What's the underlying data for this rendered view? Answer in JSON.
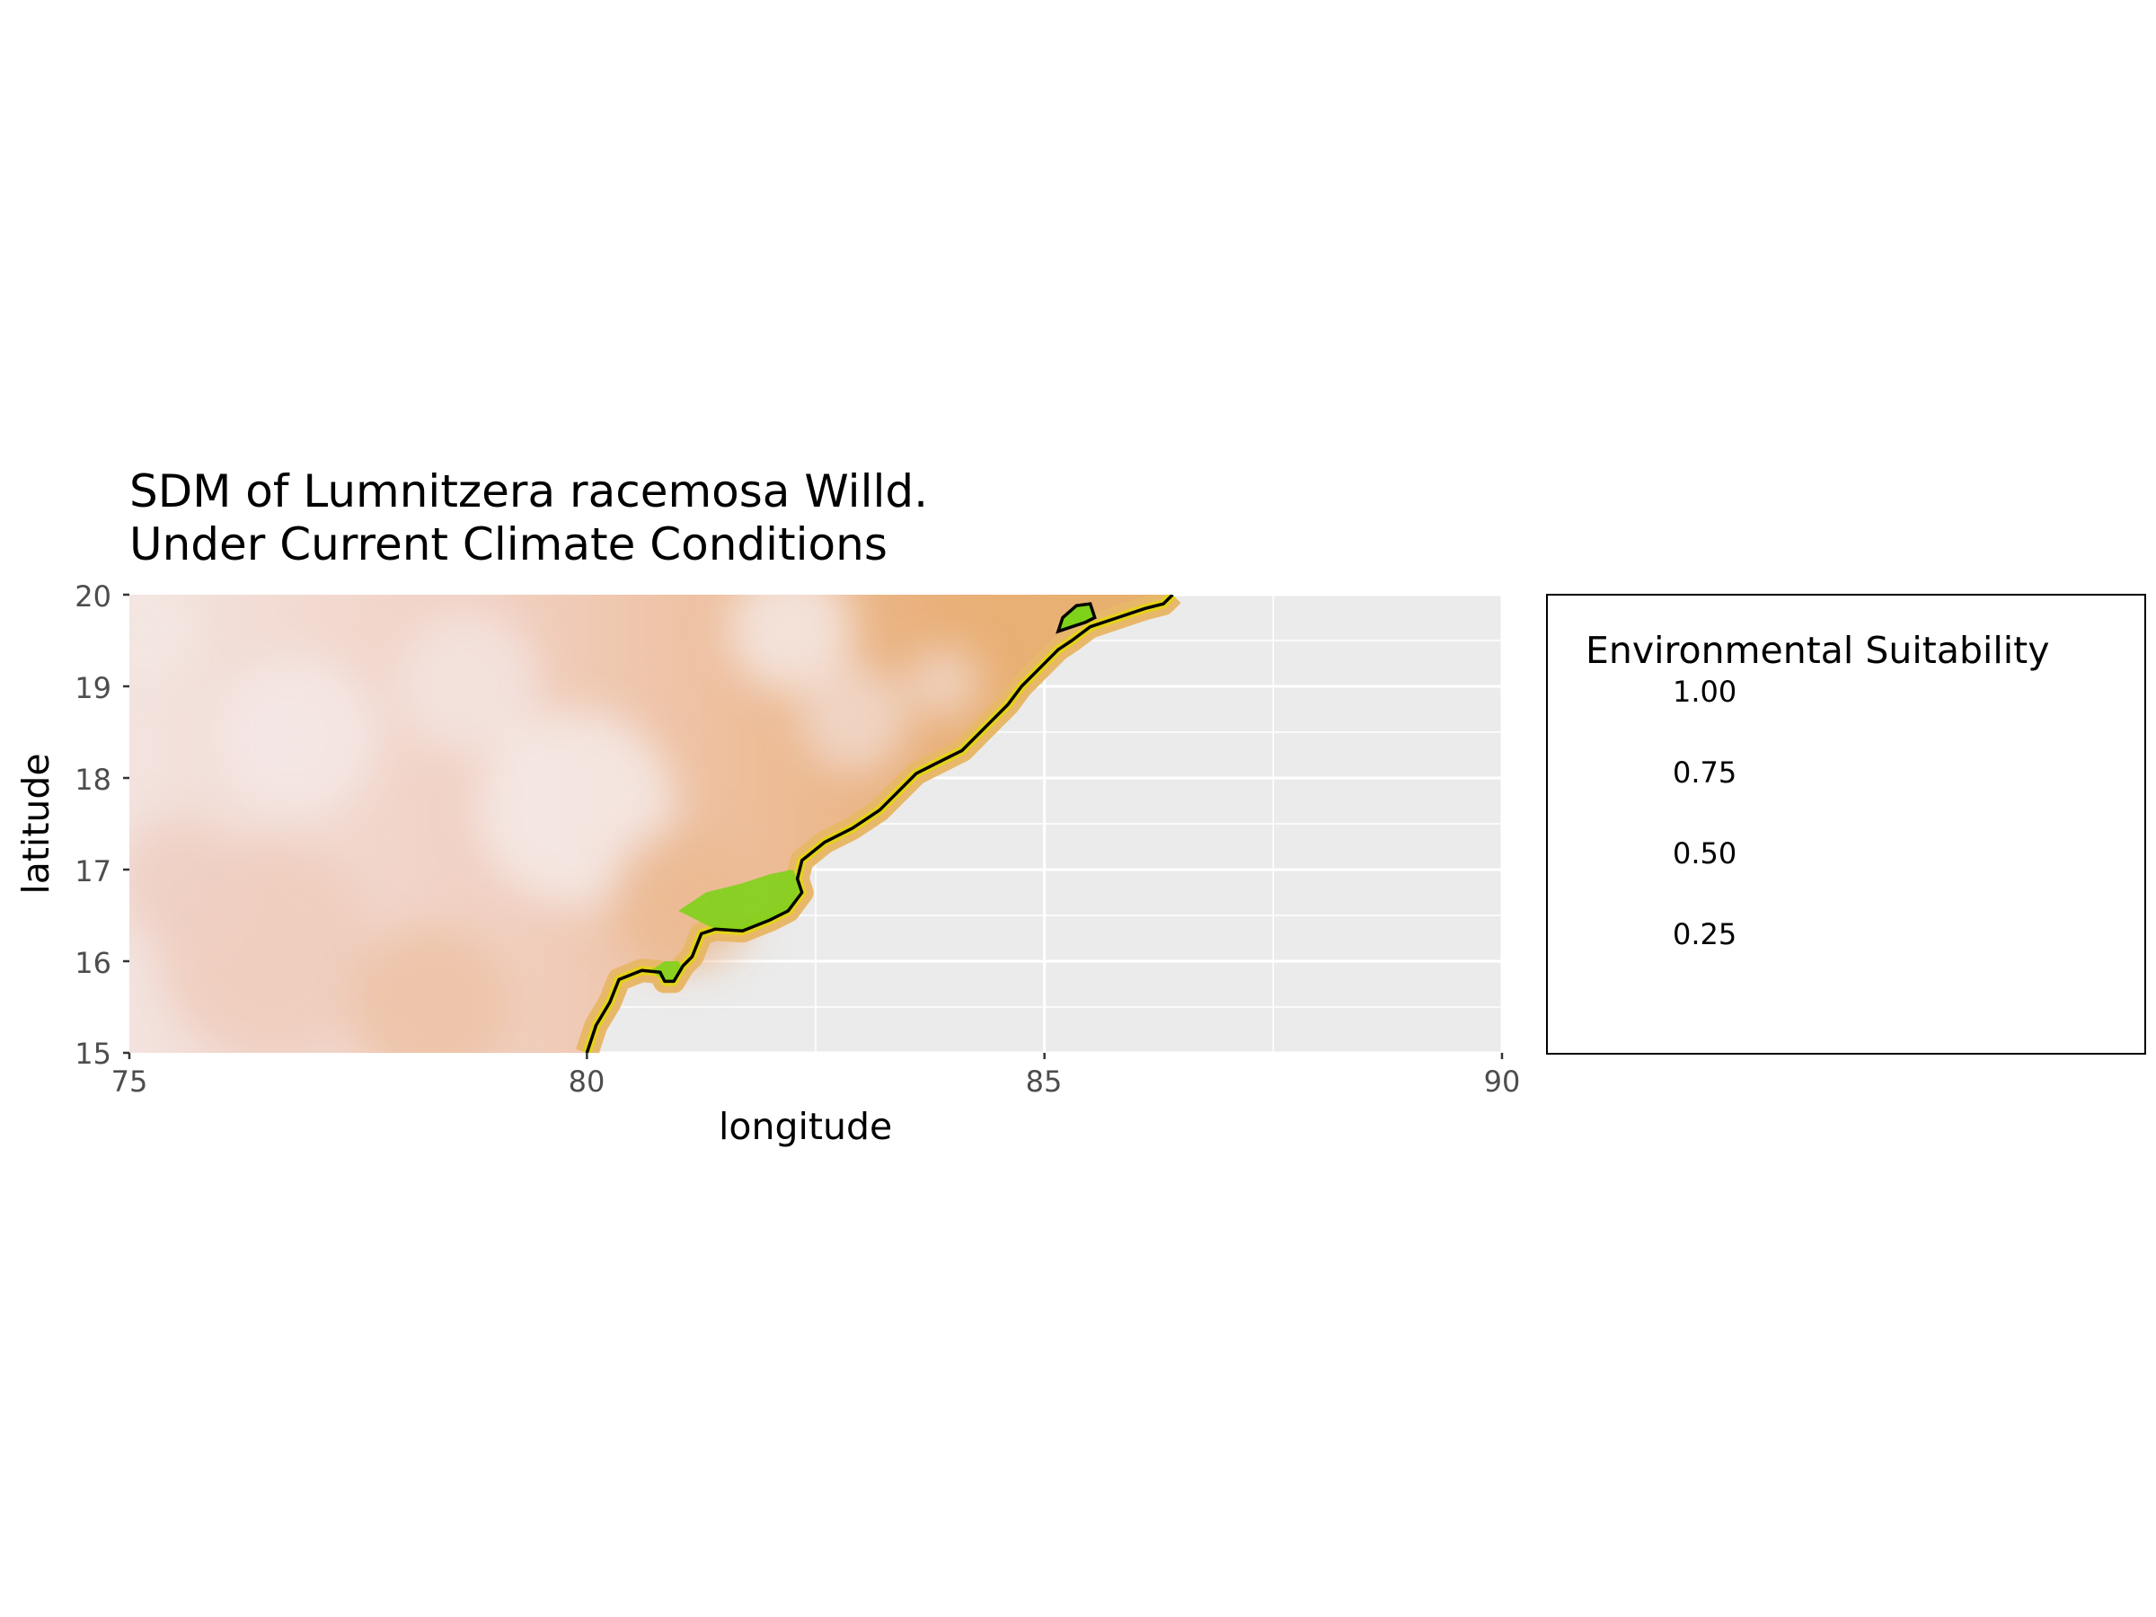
{
  "title": {
    "line1": "SDM of Lumnitzera racemosa Willd.",
    "line2": "Under Current Climate Conditions"
  },
  "axes": {
    "xlabel": "longitude",
    "ylabel": "latitude",
    "xlim": [
      75,
      90
    ],
    "ylim": [
      15,
      20
    ],
    "xticks": [
      "75",
      "80",
      "85",
      "90"
    ],
    "yticks": [
      "15",
      "16",
      "17",
      "18",
      "19",
      "20"
    ]
  },
  "legend": {
    "title": "Environmental Suitability",
    "labels": [
      "1.00",
      "0.75",
      "0.50",
      "0.25"
    ],
    "colors": [
      "#f2f2f2",
      "#ecb176",
      "#e6e600",
      "#00a600"
    ]
  },
  "colors": {
    "panel_bg": "#ebebeb",
    "grid": "#ffffff",
    "coastline": "#000000",
    "land_low": "#f3e2de",
    "land_mid": "#efc0a6",
    "land_orange": "#e9b07a",
    "coast_yellow": "#e4d21a",
    "coast_green": "#7fd21a"
  },
  "map": {
    "coastline_lonlat": [
      [
        80.0,
        15.0
      ],
      [
        80.1,
        15.3
      ],
      [
        80.25,
        15.55
      ],
      [
        80.35,
        15.8
      ],
      [
        80.6,
        15.9
      ],
      [
        80.8,
        15.88
      ],
      [
        80.85,
        15.78
      ],
      [
        80.95,
        15.78
      ],
      [
        81.05,
        15.95
      ],
      [
        81.15,
        16.05
      ],
      [
        81.25,
        16.3
      ],
      [
        81.4,
        16.35
      ],
      [
        81.7,
        16.33
      ],
      [
        82.0,
        16.45
      ],
      [
        82.2,
        16.55
      ],
      [
        82.35,
        16.75
      ],
      [
        82.3,
        16.9
      ],
      [
        82.35,
        17.1
      ],
      [
        82.6,
        17.3
      ],
      [
        82.9,
        17.45
      ],
      [
        83.2,
        17.65
      ],
      [
        83.4,
        17.85
      ],
      [
        83.6,
        18.05
      ],
      [
        83.9,
        18.2
      ],
      [
        84.1,
        18.3
      ],
      [
        84.4,
        18.6
      ],
      [
        84.6,
        18.8
      ],
      [
        84.75,
        19.0
      ],
      [
        84.9,
        19.15
      ],
      [
        85.15,
        19.4
      ],
      [
        85.3,
        19.5
      ],
      [
        85.5,
        19.65
      ],
      [
        85.8,
        19.75
      ],
      [
        86.1,
        19.85
      ],
      [
        86.3,
        19.9
      ],
      [
        86.4,
        20.0
      ]
    ],
    "island_lonlat": [
      [
        85.15,
        19.6
      ],
      [
        85.2,
        19.75
      ],
      [
        85.35,
        19.88
      ],
      [
        85.5,
        19.9
      ],
      [
        85.55,
        19.75
      ],
      [
        85.45,
        19.7
      ],
      [
        85.3,
        19.65
      ],
      [
        85.15,
        19.6
      ]
    ]
  }
}
